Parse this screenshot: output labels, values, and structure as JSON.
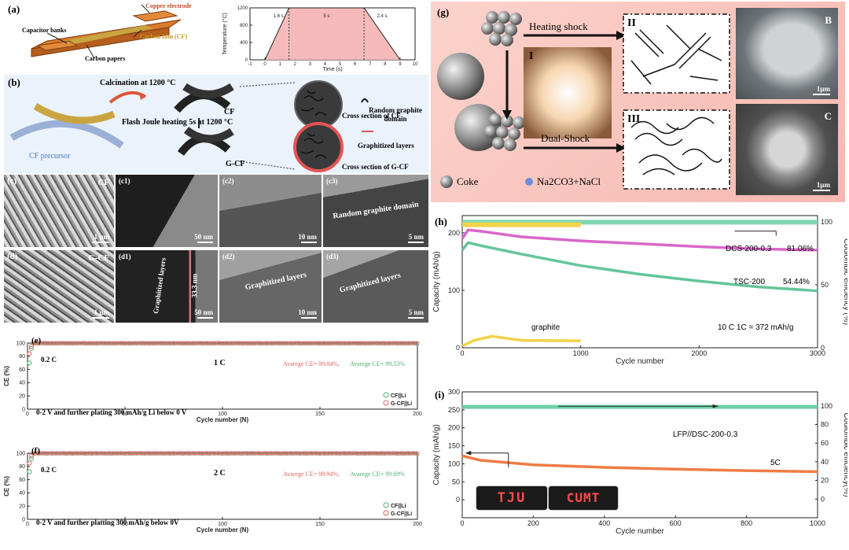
{
  "panel_a": {
    "label": "(a)",
    "labels": {
      "copper": "Copper electrode",
      "capacitor": "Capacitor banks",
      "carbon_film": "Carbon film (CF)",
      "carbon_papers": "Carbon papers"
    }
  },
  "panel_b": {
    "label": "(b)",
    "calcination": "Calcination at 1200 °C",
    "flash": "Flash Joule heating 5s at 1200 °C",
    "cf": "CF",
    "gcf": "G-CF",
    "precursor": "CF precursor",
    "cs_cf": "Cross section of CF",
    "cs_gcf": "Cross section of G-CF",
    "random_domain": "Random graphite domain",
    "graphitized": "Graphitized layers"
  },
  "panel_c": {
    "label": "(c)",
    "tiles": [
      {
        "id": "c",
        "tag": "CF",
        "scale": "1 μm"
      },
      {
        "id": "c1",
        "tag": "(c1)",
        "scale": "50 nm"
      },
      {
        "id": "c2",
        "tag": "(c2)",
        "scale": "10 nm"
      },
      {
        "id": "c3",
        "tag": "(c3)",
        "scale": "5 nm",
        "note": "Random graphite domain"
      }
    ]
  },
  "panel_d": {
    "label": "(d)",
    "tiles": [
      {
        "id": "d",
        "tag": "G-CF",
        "scale": "1 μm"
      },
      {
        "id": "d1",
        "tag": "(d1)",
        "scale": "50 nm",
        "note": "Graphitized layers",
        "note2": "33.3 nm"
      },
      {
        "id": "d2",
        "tag": "(d2)",
        "scale": "10 nm",
        "note": "Graphitized layers"
      },
      {
        "id": "d3",
        "tag": "(d3)",
        "scale": "5 nm",
        "note": "Graphitized layers"
      }
    ]
  },
  "panel_e": {
    "label": "(e)",
    "rate_left": "0.2 C",
    "rate_mid": "1 C",
    "ce_text_a": "Avarege CE= 99.84%,",
    "ce_text_b": "Avarege CE= 99.53%",
    "cond": "0-2 V and  further plating 300 mAh/g Li below 0 V",
    "legend": [
      "CF||Li",
      "G-CF||Li"
    ]
  },
  "panel_f": {
    "label": "(f)",
    "rate_left": "0.2 C",
    "rate_mid": "2 C",
    "ce_text_a": "Avarege CE= 99.94%,",
    "ce_text_b": "Avarege CE= 99.69%",
    "cond": "0-2 V and further platting 300 mAh/g below 0V",
    "legend": [
      "CF||Li",
      "G-CF||Li"
    ]
  },
  "panel_g": {
    "label": "(g)",
    "heating": "Heating shock",
    "dual": "Dual-Shock",
    "coke": "Coke",
    "salt": "Na2CO3+NaCl",
    "roman": [
      "I",
      "II",
      "III"
    ],
    "sem": [
      "B",
      "C"
    ],
    "scale": "1μm"
  },
  "panel_h": {
    "label": "(h)",
    "annot": {
      "dcs": "DCS-200-0.3",
      "dcs_pct": "81.06%",
      "tsc": "TSC-200",
      "tsc_pct": "54.44%",
      "graphite": "graphite",
      "cond": "10 C  1C = 372 mAh/g"
    }
  },
  "panel_i": {
    "label": "(i)",
    "annot": {
      "lfp": "LFP//DSC-200-0.3",
      "rate": "5C"
    },
    "logos": [
      "TJU",
      "CUMT"
    ]
  },
  "chart_data": [
    {
      "type": "line",
      "title": "",
      "xlabel": "Time (s)",
      "ylabel": "Temperature (°C)",
      "xlim": [
        -1,
        10
      ],
      "ylim": [
        0,
        1200
      ],
      "xticks": [
        -1,
        0,
        1,
        2,
        3,
        4,
        5,
        6,
        7,
        8,
        9,
        10
      ],
      "yticks": [
        0,
        400,
        800,
        1200
      ],
      "annotations": [
        "1.6 s",
        "5 s",
        "2.4 s"
      ],
      "x": [
        0,
        1.6,
        6.6,
        9
      ],
      "y": [
        0,
        1200,
        1200,
        0
      ]
    },
    {
      "type": "scatter",
      "title": "",
      "xlabel": "Cycle number (N)",
      "ylabel": "CE (%)",
      "xlim": [
        0,
        200
      ],
      "ylim": [
        0,
        100
      ],
      "xticks": [
        0,
        50,
        100,
        150,
        200
      ],
      "yticks": [
        0,
        20,
        40,
        60,
        80,
        100
      ],
      "series": [
        {
          "name": "CF||Li",
          "first_values": [
            70,
            92
          ],
          "plateau": 99.53
        },
        {
          "name": "G-CF||Li",
          "first_values": [
            84,
            95
          ],
          "plateau": 99.84
        }
      ]
    },
    {
      "type": "scatter",
      "title": "",
      "xlabel": "Cycle number (N)",
      "ylabel": "CE (%)",
      "xlim": [
        0,
        200
      ],
      "ylim": [
        0,
        100
      ],
      "xticks": [
        0,
        50,
        100,
        150,
        200
      ],
      "yticks": [
        0,
        20,
        40,
        60,
        80,
        100
      ],
      "series": [
        {
          "name": "CF||Li",
          "first_values": [
            72,
            92
          ],
          "plateau": 99.69
        },
        {
          "name": "G-CF||Li",
          "first_values": [
            85,
            96
          ],
          "plateau": 99.94
        }
      ]
    },
    {
      "type": "line",
      "title": "",
      "xlabel": "Cycle number",
      "ylabel": "Capacity (mAh/g)",
      "y2label": "Coulombic efficiency (%)",
      "xlim": [
        0,
        3000
      ],
      "ylim": [
        0,
        230
      ],
      "y2lim": [
        0,
        105
      ],
      "xticks": [
        0,
        1000,
        2000,
        3000
      ],
      "yticks": [
        0,
        100,
        200
      ],
      "y2ticks": [
        0,
        50,
        100
      ],
      "series": [
        {
          "name": "DCS-200-0.3",
          "x": [
            0,
            50,
            150,
            500,
            1000,
            1500,
            2000,
            2500,
            3000
          ],
          "y": [
            190,
            205,
            203,
            193,
            186,
            181,
            176,
            172,
            170
          ]
        },
        {
          "name": "TSC-200",
          "x": [
            0,
            50,
            150,
            500,
            1000,
            1500,
            2000,
            2500,
            3000
          ],
          "y": [
            170,
            183,
            178,
            163,
            143,
            128,
            116,
            106,
            99
          ]
        },
        {
          "name": "graphite",
          "x": [
            0,
            100,
            250,
            500,
            1000
          ],
          "y": [
            3,
            13,
            20,
            13,
            12
          ]
        },
        {
          "name": "CE",
          "axis": "y2",
          "x": [
            0,
            3000
          ],
          "y": [
            99.5,
            99.5
          ]
        }
      ]
    },
    {
      "type": "line",
      "title": "",
      "xlabel": "Cycle number",
      "ylabel": "Capacity (mAh/g)",
      "y2label": "Coulombic efficiency(%)",
      "xlim": [
        0,
        1000
      ],
      "ylim": [
        -50,
        300
      ],
      "y2lim": [
        -20,
        115
      ],
      "xticks": [
        0,
        200,
        400,
        600,
        800,
        1000
      ],
      "yticks": [
        0,
        50,
        100,
        150,
        200,
        250,
        300
      ],
      "y2ticks": [
        0,
        20,
        40,
        60,
        80,
        100
      ],
      "series": [
        {
          "name": "LFP//DSC-200-0.3",
          "x": [
            0,
            50,
            200,
            400,
            600,
            800,
            1000
          ],
          "y": [
            122,
            110,
            97,
            90,
            85,
            81,
            78
          ]
        },
        {
          "name": "CE",
          "axis": "y2",
          "x": [
            0,
            1000
          ],
          "y": [
            99.5,
            99.5
          ]
        }
      ]
    }
  ]
}
